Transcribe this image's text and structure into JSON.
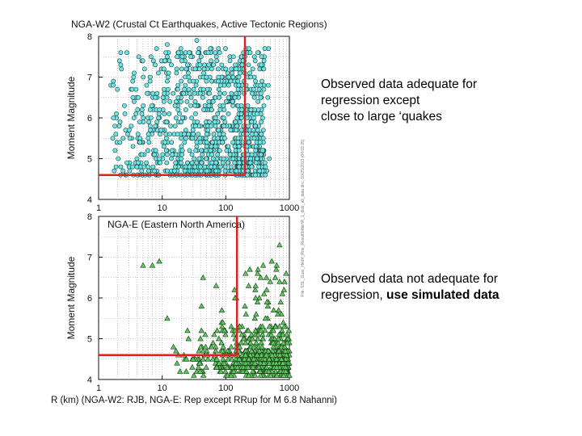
{
  "chart_data": [
    {
      "type": "scatter",
      "title": "NGA-W2 (Crustal Ct Earthquakes, Active Tectonic Regions)",
      "ylabel": "Moment Magnitude",
      "xscale": "log",
      "xlim": [
        1,
        1000
      ],
      "ylim": [
        4,
        8
      ],
      "xticks": [
        "1",
        "10",
        "100",
        "1000"
      ],
      "yticks": [
        "4",
        "5",
        "6",
        "7",
        "8"
      ],
      "marker": "circle",
      "marker_color": "#6fe6e6",
      "grid": true,
      "side_text": "File: SSL_Guar_Hedrf_Roe_Resultfolder\\R_1_distr_all_data.dirc, 10/25/2013 (04:02:25)",
      "boundary_lines": {
        "color": "#e02020",
        "x_cutoff": 200,
        "m_floor": 4.6
      },
      "series": [
        {
          "x": [
            12,
            18,
            25,
            35,
            45,
            60,
            80,
            100,
            130,
            160,
            200,
            260
          ],
          "y": [
            7.8,
            7.6,
            7.3,
            7.9,
            7.1,
            6.9,
            7.6,
            7.2,
            7.0,
            6.8,
            7.5,
            6.6
          ]
        }
      ]
    },
    {
      "type": "scatter",
      "title": "NGA-E (Eastern North America)",
      "ylabel": "Moment Magnitude",
      "xlabel": "R (km) (NGA-W2: RJB, NGA-E: Rep except RRup for M 6.8 Nahanni)",
      "xscale": "log",
      "xlim": [
        1,
        1000
      ],
      "ylim": [
        4,
        8
      ],
      "xticks": [
        "1",
        "10",
        "100",
        "1000"
      ],
      "yticks": [
        "4",
        "5",
        "6",
        "7",
        "8"
      ],
      "marker": "triangle",
      "marker_color": "#5fc85f",
      "grid": true,
      "boundary_lines": {
        "color": "#e02020",
        "x_cutoff": 150,
        "m_floor": 4.6
      },
      "series": [
        {
          "x": [
            5,
            7,
            9,
            12,
            15,
            25,
            40,
            60,
            90,
            140,
            200,
            300,
            400,
            500,
            600,
            700
          ],
          "y": [
            6.8,
            6.8,
            6.9,
            5.5,
            4.8,
            5.2,
            5.0,
            4.8,
            5.4,
            6.0,
            5.8,
            5.6,
            6.1,
            6.4,
            6.5,
            7.3
          ]
        }
      ]
    }
  ],
  "annotations": {
    "top": {
      "lines": [
        "Observed data adequate for",
        "regression except",
        "close to large ‘quakes"
      ]
    },
    "bottom": {
      "line1": "Observed data not adequate for",
      "line2_plain": "regression, ",
      "line2_bold": "use simulated data"
    }
  }
}
